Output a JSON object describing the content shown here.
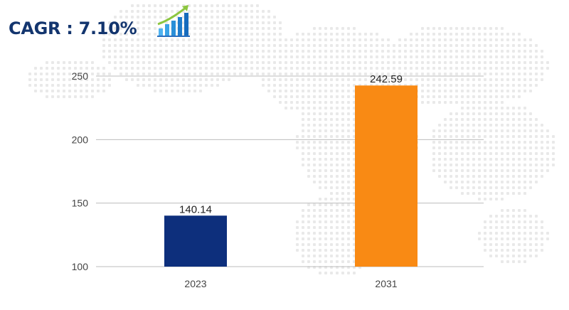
{
  "header": {
    "cagr_label": "CAGR : 7.10%",
    "icon": "growth-chart-icon"
  },
  "colors": {
    "title": "#13356e",
    "bar_2023": "#0d2f7c",
    "bar_2031": "#f98a14",
    "grid": "#bdbdbd",
    "map_dots": "#e9e9e9"
  },
  "chart_data": {
    "type": "bar",
    "categories": [
      "2023",
      "2031"
    ],
    "values": [
      140.14,
      242.59
    ],
    "data_labels": [
      "140.14",
      "242.59"
    ],
    "yticks": [
      "100",
      "150",
      "200",
      "250"
    ],
    "ylim": [
      100,
      250
    ],
    "grid": true,
    "title": "",
    "xlabel": "",
    "ylabel": ""
  }
}
